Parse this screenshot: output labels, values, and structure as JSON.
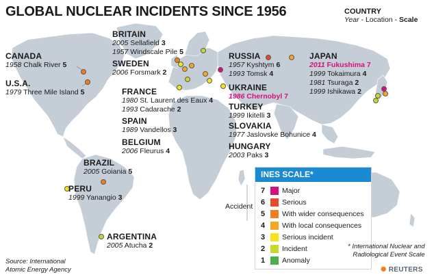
{
  "title": "GLOBAL NUCLEAR INCIDENTS SINCE 1956",
  "legend_header": {
    "title": "COUNTRY",
    "year": "Year",
    "sep1": " - ",
    "location": "Location",
    "sep2": " - ",
    "scale": "Scale"
  },
  "countries": [
    {
      "name": "CANADA",
      "entries": [
        {
          "year": "1958",
          "location": "Chalk River",
          "scale": "5"
        }
      ]
    },
    {
      "name": "U.S.A.",
      "entries": [
        {
          "year": "1979",
          "location": "Three Mile Island",
          "scale": "5"
        }
      ]
    },
    {
      "name": "BRITAIN",
      "entries": [
        {
          "year": "2005",
          "location": "Sellafield",
          "scale": "3"
        },
        {
          "year": "1957",
          "location": "Windscale Pile",
          "scale": "5"
        }
      ]
    },
    {
      "name": "SWEDEN",
      "entries": [
        {
          "year": "2006",
          "location": "Forsmark",
          "scale": "2"
        }
      ]
    },
    {
      "name": "FRANCE",
      "entries": [
        {
          "year": "1980",
          "location": "St. Laurent des Eaux",
          "scale": "4"
        },
        {
          "year": "1993",
          "location": "Cadarache",
          "scale": "2"
        }
      ]
    },
    {
      "name": "SPAIN",
      "entries": [
        {
          "year": "1989",
          "location": "Vandellos",
          "scale": "3"
        }
      ]
    },
    {
      "name": "BELGIUM",
      "entries": [
        {
          "year": "2006",
          "location": "Fleurus",
          "scale": "4"
        }
      ]
    },
    {
      "name": "RUSSIA",
      "entries": [
        {
          "year": "1957",
          "location": "Kyshtym",
          "scale": "6"
        },
        {
          "year": "1993",
          "location": "Tomsk",
          "scale": "4"
        }
      ]
    },
    {
      "name": "UKRAINE",
      "entries": [
        {
          "year": "1986",
          "location": "Chernobyl",
          "scale": "7"
        }
      ]
    },
    {
      "name": "TURKEY",
      "entries": [
        {
          "year": "1999",
          "location": "Ikitelli",
          "scale": "3"
        }
      ]
    },
    {
      "name": "SLOVAKIA",
      "entries": [
        {
          "year": "1977",
          "location": "Jaslovske Bohunice",
          "scale": "4"
        }
      ]
    },
    {
      "name": "HUNGARY",
      "entries": [
        {
          "year": "2003",
          "location": "Paks",
          "scale": "3"
        }
      ]
    },
    {
      "name": "JAPAN",
      "entries": [
        {
          "year": "2011",
          "location": "Fukushima",
          "scale": "7"
        },
        {
          "year": "1999",
          "location": "Tokaimura",
          "scale": "4"
        },
        {
          "year": "1981",
          "location": "Tsuraga",
          "scale": "2"
        },
        {
          "year": "1999",
          "location": "Ishikawa",
          "scale": "2"
        }
      ]
    },
    {
      "name": "BRAZIL",
      "entries": [
        {
          "year": "2005",
          "location": "Goiania",
          "scale": "5"
        }
      ]
    },
    {
      "name": "PERU",
      "entries": [
        {
          "year": "1999",
          "location": "Yanangio",
          "scale": "3"
        }
      ]
    },
    {
      "name": "ARGENTINA",
      "entries": [
        {
          "year": "2005",
          "location": "Atucha",
          "scale": "2"
        }
      ]
    }
  ],
  "ines_scale": {
    "title": "INES SCALE*",
    "accident_label": "Accident",
    "levels": [
      {
        "level": "7",
        "label": "Major",
        "color": "#d6107b"
      },
      {
        "level": "6",
        "label": "Serious",
        "color": "#e8482c"
      },
      {
        "level": "5",
        "label": "With wider consequences",
        "color": "#f07d1e"
      },
      {
        "level": "4",
        "label": "With local consequences",
        "color": "#f5a623"
      },
      {
        "level": "3",
        "label": "Serious incident",
        "color": "#f7e31c"
      },
      {
        "level": "2",
        "label": "Incident",
        "color": "#c6d92a"
      },
      {
        "level": "1",
        "label": "Anomaly",
        "color": "#4caf4c"
      }
    ]
  },
  "footnote": {
    "line1": "* International Nuclear and",
    "line2": "Radiological Event Scale"
  },
  "source": {
    "line1": "Source: International",
    "line2": "Atomic Energy Agency"
  },
  "credit": "REUTERS",
  "colors": {
    "land": "#c5ced7",
    "ocean": "#ffffff",
    "highlight": "#d6107b",
    "ines_header": "#1a8bd2"
  }
}
